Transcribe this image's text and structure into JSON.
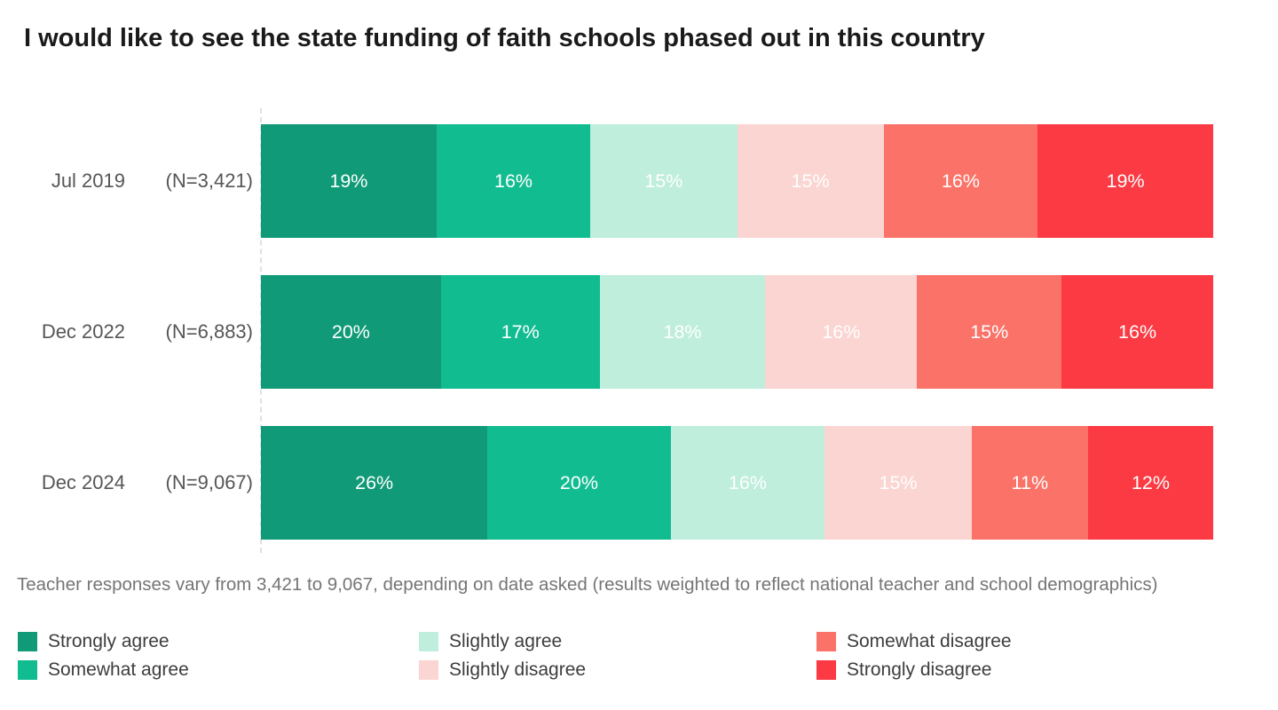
{
  "title": "I would like to see the state funding of faith schools phased out in this country",
  "footnote": "Teacher responses vary from 3,421 to 9,067, depending on date asked (results weighted to reflect national teacher and school demographics)",
  "chart_data": {
    "type": "bar",
    "stacked": true,
    "orientation": "horizontal",
    "title": "I would like to see the state funding of faith schools phased out in this country",
    "categories": [
      "Jul 2019",
      "Dec 2022",
      "Dec 2024"
    ],
    "sample_size_labels": [
      "(N=3,421)",
      "(N=6,883)",
      "(N=9,067)"
    ],
    "series": [
      {
        "name": "Strongly agree",
        "color": "#119a77",
        "values": [
          19,
          20,
          26
        ]
      },
      {
        "name": "Somewhat agree",
        "color": "#12bc91",
        "values": [
          16,
          17,
          20
        ]
      },
      {
        "name": "Slightly agree",
        "color": "#bfeedd",
        "values": [
          15,
          18,
          16
        ]
      },
      {
        "name": "Slightly disagree",
        "color": "#fbd5d2",
        "values": [
          15,
          16,
          15
        ]
      },
      {
        "name": "Somewhat disagree",
        "color": "#fa7268",
        "values": [
          16,
          15,
          11
        ]
      },
      {
        "name": "Strongly disagree",
        "color": "#fb3a43",
        "values": [
          19,
          16,
          12
        ]
      }
    ],
    "value_suffix": "%",
    "value_label_color": "#ffffff",
    "axis_line_style": "dashed",
    "legend_position": "bottom",
    "xlim": [
      0,
      100
    ],
    "grid": false
  }
}
